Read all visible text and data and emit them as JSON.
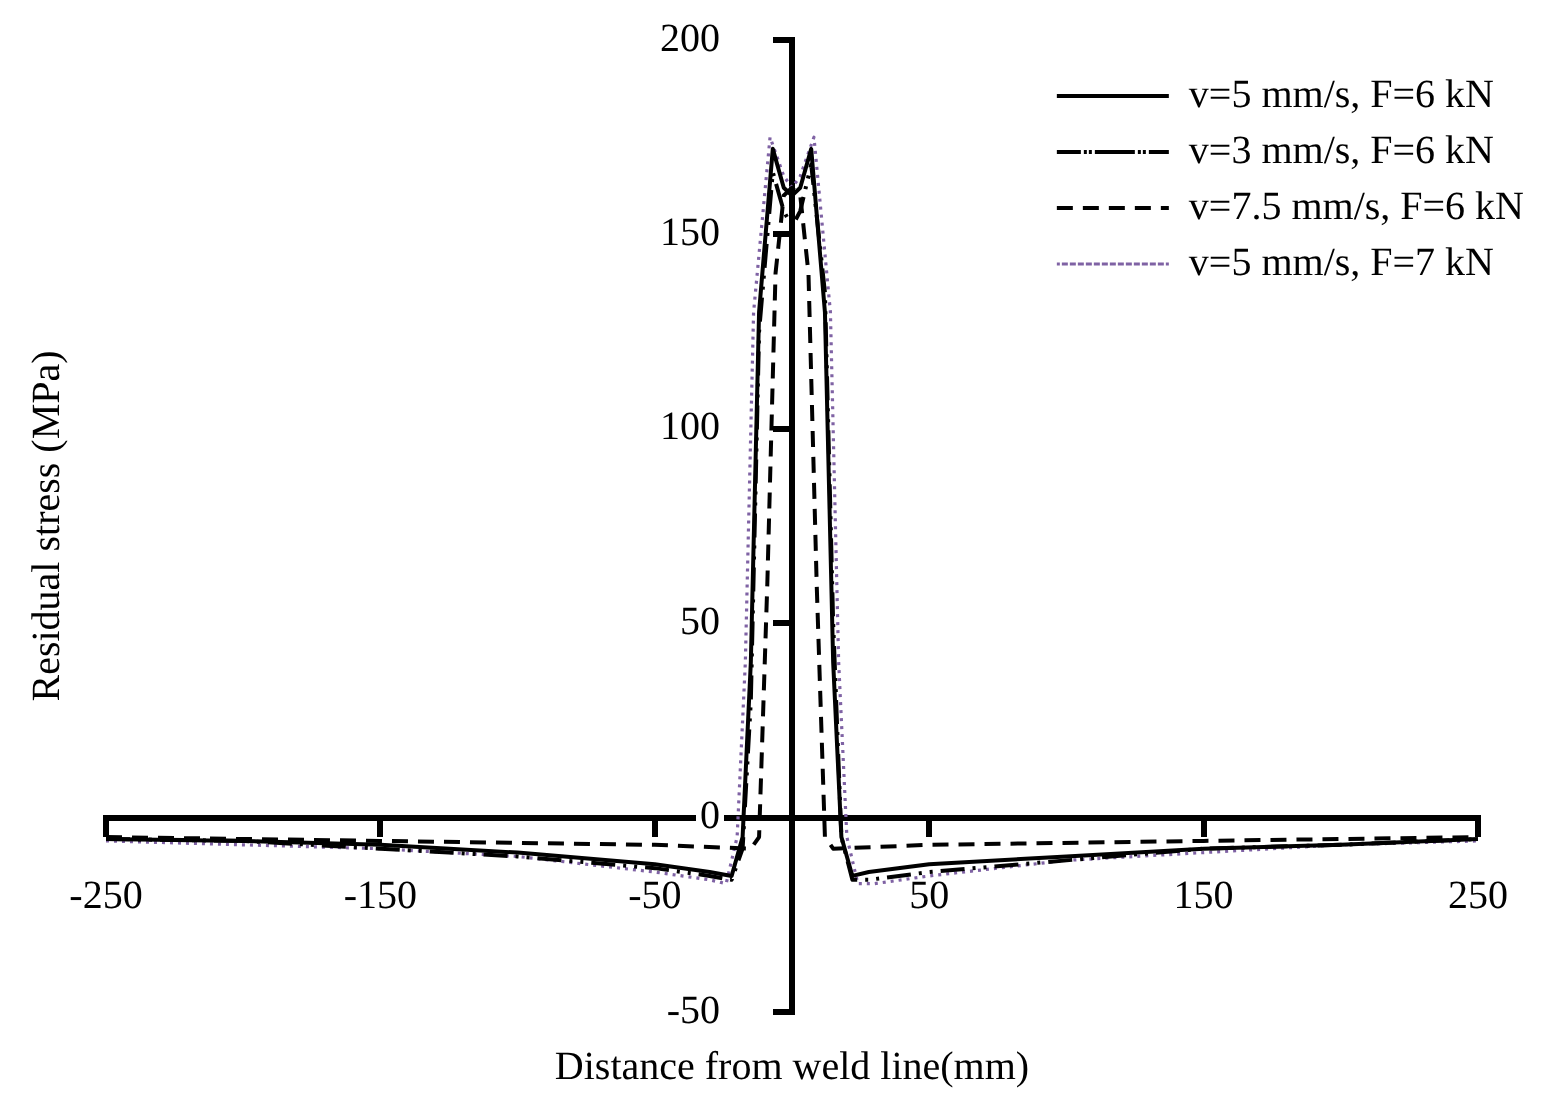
{
  "chart_data": {
    "type": "line",
    "xlabel": "Distance from weld line(mm)",
    "ylabel": "Residual stress (MPa)",
    "xlim": [
      -250,
      250
    ],
    "xticks": [
      -250,
      -150,
      -50,
      50,
      150,
      250
    ],
    "ylim": [
      -50,
      200
    ],
    "yticks": [
      -50,
      0,
      50,
      100,
      150,
      200
    ],
    "grid": false,
    "legend": "top right",
    "marker": "none",
    "series": [
      {
        "name": "v=5 mm/s, F=6 kN",
        "color": "#000000",
        "line_style": "solid",
        "x": [
          -250,
          -200,
          -150,
          -100,
          -50,
          -30,
          -22,
          -18,
          -15,
          -12,
          -7,
          -3,
          0,
          3,
          7,
          12,
          15,
          18,
          22,
          28,
          50,
          100,
          150,
          200,
          250
        ],
        "values": [
          -5.5,
          -6,
          -7,
          -9,
          -12,
          -14,
          -15,
          -5,
          40,
          130,
          172,
          162,
          160,
          162,
          172,
          130,
          40,
          -5,
          -15,
          -14,
          -12,
          -10,
          -8,
          -7,
          -5.5
        ]
      },
      {
        "name": "v=3 mm/s, F=6 kN",
        "color": "#000000",
        "line_style": "dashdot",
        "x": [
          -250,
          -200,
          -150,
          -100,
          -50,
          -30,
          -22,
          -18,
          -15,
          -12,
          -7,
          -3,
          0,
          3,
          7,
          12,
          15,
          18,
          22,
          28,
          50,
          100,
          150,
          200,
          250
        ],
        "values": [
          -5.5,
          -6,
          -8,
          -10,
          -13,
          -15,
          -16,
          -8,
          30,
          125,
          166,
          156,
          152,
          156,
          168,
          135,
          50,
          -5,
          -16,
          -16,
          -14,
          -11,
          -8,
          -7,
          -5.5
        ]
      },
      {
        "name": "v=7.5 mm/s, F=6 kN",
        "color": "#000000",
        "line_style": "dashed",
        "x": [
          -250,
          -150,
          -50,
          -15,
          -12,
          -9,
          -6,
          -3,
          0,
          3,
          6,
          9,
          12,
          15,
          50,
          150,
          250
        ],
        "values": [
          -5,
          -6,
          -7,
          -8,
          -5,
          60,
          140,
          160,
          162,
          160,
          140,
          60,
          -5,
          -8,
          -7,
          -6,
          -5
        ]
      },
      {
        "name": "v=5 mm/s, F=7 kN",
        "color": "#7f62a4",
        "line_style": "dotted",
        "x": [
          -250,
          -200,
          -150,
          -100,
          -50,
          -30,
          -24,
          -20,
          -17,
          -14,
          -8,
          -3,
          0,
          3,
          8,
          14,
          17,
          20,
          24,
          30,
          50,
          100,
          150,
          200,
          250
        ],
        "values": [
          -6,
          -7,
          -8,
          -10,
          -14,
          -16,
          -17,
          -5,
          40,
          130,
          175,
          165,
          162,
          165,
          175,
          130,
          40,
          -5,
          -17,
          -17,
          -15,
          -11,
          -9,
          -7,
          -6
        ]
      }
    ]
  }
}
